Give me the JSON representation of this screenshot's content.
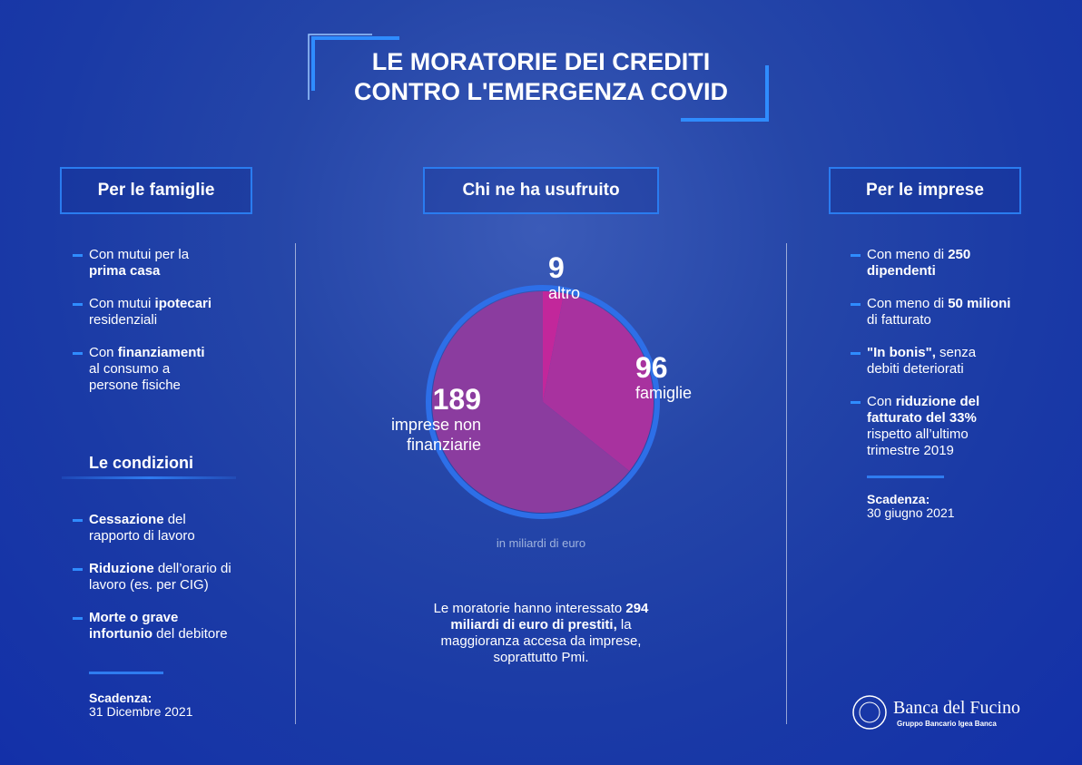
{
  "header": {
    "title_lines": [
      "LE MORATORIE DEI CREDITI",
      "CONTRO L'EMERGENZA COVID"
    ]
  },
  "families": {
    "title": "Per le famiglie",
    "items": [
      [
        {
          "text": "Con mutui per la "
        },
        {
          "text": "prima casa",
          "bold": true
        }
      ],
      [
        {
          "text": "Con mutui "
        },
        {
          "text": "ipotecari",
          "bold": true
        },
        {
          "text": " residenziali"
        }
      ],
      [
        {
          "text": "Con "
        },
        {
          "text": "finanziamenti",
          "bold": true
        },
        {
          "text": " al consumo a persone fisiche"
        }
      ]
    ],
    "conditions_title": "Le condizioni",
    "conditions": [
      [
        {
          "text": "Cessazione",
          "bold": true
        },
        {
          "text": " del rapporto di lavoro"
        }
      ],
      [
        {
          "text": "Riduzione",
          "bold": true
        },
        {
          "text": " dell’orario di lavoro (es. per CIG)"
        }
      ],
      [
        {
          "text": "Morte o grave infortunio",
          "bold": true
        },
        {
          "text": " del debitore"
        }
      ]
    ],
    "deadline_label": "Scadenza:",
    "deadline": "31 Dicembre 2021"
  },
  "users": {
    "title": "Chi ne ha usufruito",
    "unit": "in miliardi di euro",
    "note": [
      {
        "text": "Le moratorie hanno interessato "
      },
      {
        "text": "294 miliardi di euro di prestiti,",
        "bold": true
      },
      {
        "text": " la maggioranza accesa da imprese, soprattutto Pmi."
      }
    ]
  },
  "chart_data": {
    "type": "pie",
    "categories": [
      "altro",
      "famiglie",
      "imprese non finanziarie"
    ],
    "values": [
      9,
      96,
      189
    ],
    "colors": [
      "#c2279b",
      "#a8329f",
      "#8b3c9f"
    ]
  },
  "companies": {
    "title": "Per le imprese",
    "items": [
      [
        {
          "text": "Con meno di "
        },
        {
          "text": "250 dipendenti",
          "bold": true
        }
      ],
      [
        {
          "text": "Con meno di "
        },
        {
          "text": "50 milioni",
          "bold": true
        },
        {
          "text": " di fatturato"
        }
      ],
      [
        {
          "text": "\"In bonis\",",
          "bold": true
        },
        {
          "text": " senza debiti deteriorati"
        }
      ],
      [
        {
          "text": "Con "
        },
        {
          "text": "riduzione del fatturato del 33%",
          "bold": true
        },
        {
          "text": " rispetto all’ultimo trimestre 2019"
        }
      ]
    ],
    "deadline_label": "Scadenza:",
    "deadline": "30 giugno 2021"
  },
  "logo": {
    "name": "Banca del Fucino",
    "group": "Gruppo Bancario Igea Banca"
  }
}
